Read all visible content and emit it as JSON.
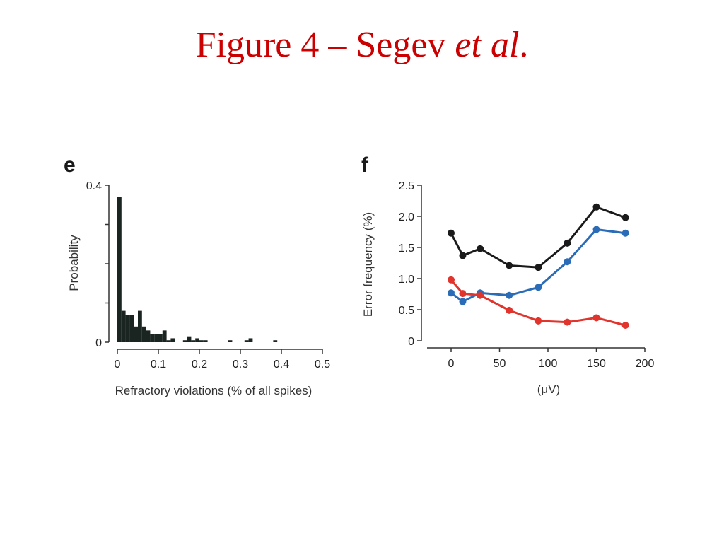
{
  "slide": {
    "title_main": "Figure 4 – Segev ",
    "title_italic": "et al",
    "title_end": "."
  },
  "colors": {
    "title": "#cc0000",
    "hist_bar": "#1a2420",
    "black_series": "#1a1a1a",
    "blue_series": "#2b6cb8",
    "red_series": "#e0342c"
  },
  "chart_data": [
    {
      "panel": "e",
      "type": "bar",
      "title": "",
      "xlabel": "Refractory violations (% of all spikes)",
      "ylabel": "Probability",
      "xlim": [
        0,
        0.5
      ],
      "ylim": [
        0,
        0.4
      ],
      "xticks": [
        "0",
        "0.1",
        "0.2",
        "0.3",
        "0.4",
        "0.5"
      ],
      "yticks": [
        "0",
        "0.4"
      ],
      "bin_width": 0.01,
      "bins_start": [
        0.0,
        0.01,
        0.02,
        0.03,
        0.04,
        0.05,
        0.06,
        0.07,
        0.08,
        0.09,
        0.1,
        0.11,
        0.12,
        0.13,
        0.16,
        0.17,
        0.18,
        0.19,
        0.2,
        0.21,
        0.27,
        0.31,
        0.32,
        0.38
      ],
      "values": [
        0.37,
        0.08,
        0.07,
        0.07,
        0.04,
        0.08,
        0.04,
        0.03,
        0.02,
        0.02,
        0.02,
        0.03,
        0.005,
        0.01,
        0.005,
        0.015,
        0.005,
        0.01,
        0.005,
        0.005,
        0.005,
        0.005,
        0.01,
        0.005
      ]
    },
    {
      "panel": "f",
      "type": "line",
      "title": "",
      "xlabel": "(μV)",
      "ylabel": "Error frequency (%)",
      "xlim": [
        -15,
        200
      ],
      "ylim": [
        0,
        2.5
      ],
      "xticks": [
        "0",
        "50",
        "100",
        "150",
        "200"
      ],
      "yticks": [
        "0",
        "0.5",
        "1.0",
        "1.5",
        "2.0",
        "2.5"
      ],
      "x": [
        0,
        12,
        30,
        60,
        90,
        120,
        150,
        180
      ],
      "series": [
        {
          "color": "#1a1a1a",
          "values": [
            1.73,
            1.37,
            1.48,
            1.21,
            1.18,
            1.57,
            2.15,
            1.98
          ]
        },
        {
          "color": "#2b6cb8",
          "values": [
            0.77,
            0.63,
            0.77,
            0.73,
            0.86,
            1.27,
            1.79,
            1.73
          ]
        },
        {
          "color": "#e0342c",
          "values": [
            0.98,
            0.76,
            0.73,
            0.49,
            0.32,
            0.3,
            0.37,
            0.25
          ]
        }
      ]
    }
  ]
}
